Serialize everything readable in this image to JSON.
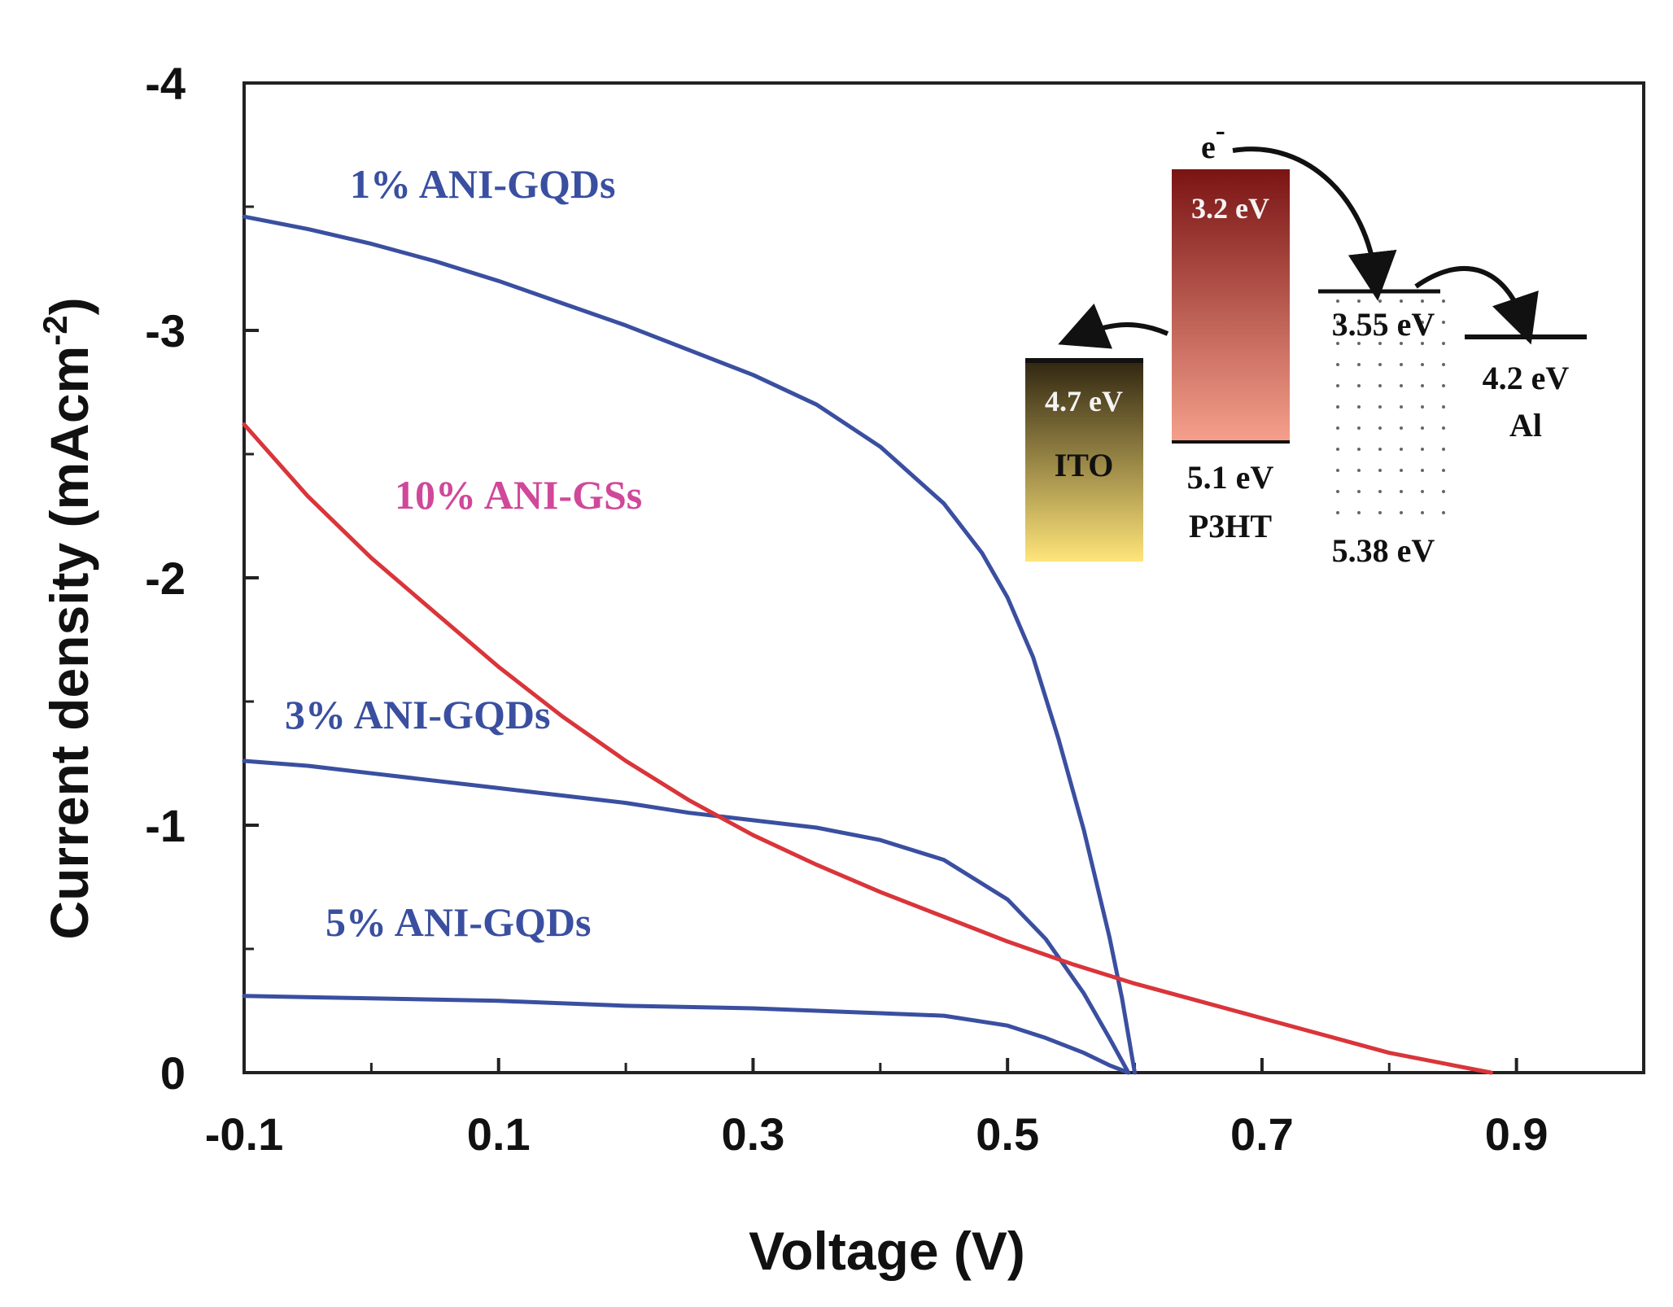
{
  "chart_data": {
    "type": "line",
    "xlabel": "Voltage  (V)",
    "ylabel": "Current density (mAcm",
    "ylabel_sup": "-2",
    "ylabel_close": ")",
    "xlim": [
      -0.1,
      1.0
    ],
    "ylim": [
      0,
      -4
    ],
    "x_ticks": [
      -0.1,
      0.1,
      0.3,
      0.5,
      0.7,
      0.9
    ],
    "x_tick_labels": [
      "-0.1",
      "0.1",
      "0.3",
      "0.5",
      "0.7",
      "0.9"
    ],
    "y_ticks": [
      0,
      -1,
      -2,
      -3,
      -4
    ],
    "y_tick_labels": [
      "0",
      "-1",
      "-2",
      "-3",
      "-4"
    ],
    "grid": false,
    "series": [
      {
        "name": "1% ANI-GQDs",
        "color": "#3a4fa0",
        "label_color": "#3a4fa0",
        "x": [
          -0.1,
          -0.05,
          0.0,
          0.05,
          0.1,
          0.15,
          0.2,
          0.25,
          0.3,
          0.35,
          0.4,
          0.45,
          0.48,
          0.5,
          0.52,
          0.54,
          0.56,
          0.58,
          0.59,
          0.6
        ],
        "y": [
          -3.46,
          -3.41,
          -3.35,
          -3.28,
          -3.2,
          -3.11,
          -3.02,
          -2.92,
          -2.82,
          -2.7,
          -2.53,
          -2.3,
          -2.1,
          -1.92,
          -1.68,
          -1.35,
          -0.98,
          -0.55,
          -0.3,
          0.0
        ]
      },
      {
        "name": "3% ANI-GQDs",
        "color": "#3a4fa0",
        "label_color": "#3a4fa0",
        "x": [
          -0.1,
          -0.05,
          0.0,
          0.05,
          0.1,
          0.15,
          0.2,
          0.25,
          0.3,
          0.35,
          0.4,
          0.45,
          0.5,
          0.53,
          0.56,
          0.58,
          0.595
        ],
        "y": [
          -1.26,
          -1.24,
          -1.21,
          -1.18,
          -1.15,
          -1.12,
          -1.09,
          -1.05,
          -1.02,
          -0.99,
          -0.94,
          -0.86,
          -0.7,
          -0.54,
          -0.32,
          -0.14,
          0.0
        ]
      },
      {
        "name": "5% ANI-GQDs",
        "color": "#3a4fa0",
        "label_color": "#3a4fa0",
        "x": [
          -0.1,
          0.0,
          0.1,
          0.2,
          0.3,
          0.4,
          0.45,
          0.5,
          0.53,
          0.56,
          0.58,
          0.595
        ],
        "y": [
          -0.31,
          -0.3,
          -0.29,
          -0.27,
          -0.26,
          -0.24,
          -0.23,
          -0.19,
          -0.14,
          -0.08,
          -0.03,
          0.0
        ]
      },
      {
        "name": "10% ANI-GSs",
        "color": "#d9353a",
        "label_color": "#d0489a",
        "x": [
          -0.1,
          -0.05,
          0.0,
          0.05,
          0.1,
          0.15,
          0.2,
          0.25,
          0.3,
          0.35,
          0.4,
          0.45,
          0.5,
          0.55,
          0.6,
          0.65,
          0.7,
          0.75,
          0.8,
          0.85,
          0.88
        ],
        "y": [
          -2.62,
          -2.33,
          -2.08,
          -1.86,
          -1.64,
          -1.44,
          -1.26,
          -1.1,
          -0.96,
          -0.84,
          -0.73,
          -0.63,
          -0.53,
          -0.44,
          -0.36,
          -0.29,
          -0.22,
          -0.15,
          -0.08,
          -0.03,
          0.0
        ]
      }
    ]
  },
  "inset": {
    "electron": "e",
    "electron_sup": "-",
    "ito_level": "4.7 eV",
    "ito_name": "ITO",
    "p3ht_lumo": "3.2 eV",
    "p3ht_homo": "5.1 eV",
    "p3ht_name": "P3HT",
    "acceptor_lumo": "3.55 eV",
    "acceptor_homo": "5.38 eV",
    "al_level": "4.2 eV",
    "al_name": "Al",
    "colors": {
      "ito_top": "#2e2410",
      "ito_bottom": "#ffe57a",
      "p3ht_top": "#7a1414",
      "p3ht_bottom": "#f6a08c"
    }
  }
}
